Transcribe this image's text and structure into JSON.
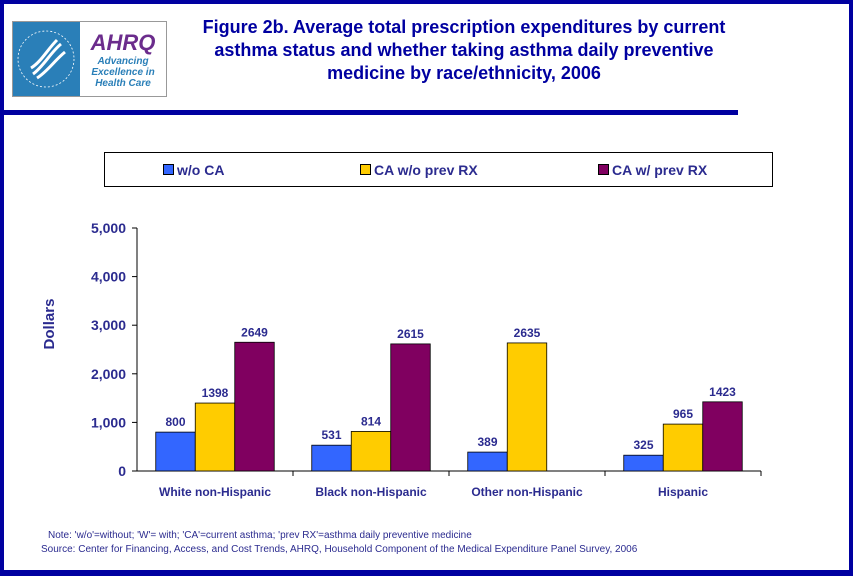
{
  "header": {
    "title": "Figure 2b. Average total prescription expenditures by current asthma status and whether taking asthma daily preventive medicine by race/ethnicity, 2006",
    "logo": {
      "brand": "AHRQ",
      "tagline": "Advancing Excellence in Health Care",
      "seal": "Department of Health & Human Services USA"
    }
  },
  "chart_data": {
    "type": "bar",
    "title": "Figure 2b. Average total prescription expenditures by current asthma status and whether taking asthma daily preventive medicine by race/ethnicity, 2006",
    "ylabel": "Dollars",
    "xlabel": "",
    "ylim": [
      0,
      5000
    ],
    "yticks": [
      "0",
      "1,000",
      "2,000",
      "3,000",
      "4,000",
      "5,000"
    ],
    "categories": [
      "White non-Hispanic",
      "Black non-Hispanic",
      "Other non-Hispanic",
      "Hispanic"
    ],
    "series": [
      {
        "name": "w/o CA",
        "color": "#3366FF",
        "values": [
          800,
          531,
          389,
          325
        ]
      },
      {
        "name": "CA w/o prev RX",
        "color": "#FFCC00",
        "values": [
          1398,
          814,
          2635,
          965
        ]
      },
      {
        "name": "CA w/ prev RX",
        "color": "#800060",
        "values": [
          2649,
          2615,
          null,
          1423
        ]
      }
    ],
    "legend": "top",
    "grid": false
  },
  "footer": {
    "note": "Note: 'w/o'=without; 'W'= with; 'CA'=current asthma; 'prev RX'=asthma daily preventive medicine",
    "source": "Source: Center for Financing, Access, and Cost Trends, AHRQ, Household Component of the Medical Expenditure Panel Survey, 2006"
  }
}
